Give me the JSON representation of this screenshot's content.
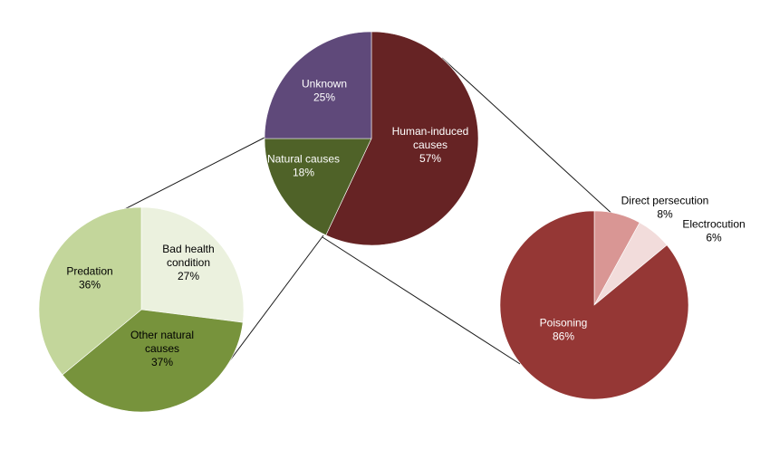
{
  "chart_data": [
    {
      "type": "pie",
      "title": "",
      "slices": [
        {
          "label": "Human-induced causes",
          "label_lines": [
            "Human-induced",
            "causes"
          ],
          "percent_text": "57%",
          "value": 57,
          "color": "#662324"
        },
        {
          "label": "Natural causes",
          "label_lines": [
            "Natural causes"
          ],
          "percent_text": "18%",
          "value": 18,
          "color": "#4F6228"
        },
        {
          "label": "Unknown",
          "label_lines": [
            "Unknown"
          ],
          "percent_text": "25%",
          "value": 25,
          "color": "#5F497A"
        }
      ]
    },
    {
      "type": "pie",
      "title": "",
      "breakdown_of": "Natural causes",
      "slices": [
        {
          "label": "Bad health condition",
          "label_lines": [
            "Bad health",
            "condition"
          ],
          "percent_text": "27%",
          "value": 27,
          "color": "#EBF1DE"
        },
        {
          "label": "Other natural causes",
          "label_lines": [
            "Other natural",
            "causes"
          ],
          "percent_text": "37%",
          "value": 37,
          "color": "#77933C"
        },
        {
          "label": "Predation",
          "label_lines": [
            "Predation"
          ],
          "percent_text": "36%",
          "value": 36,
          "color": "#C3D69B"
        }
      ]
    },
    {
      "type": "pie",
      "title": "",
      "breakdown_of": "Human-induced causes",
      "slices": [
        {
          "label": "Direct persecution",
          "label_lines": [
            "Direct persecution"
          ],
          "percent_text": "8%",
          "value": 8,
          "color": "#D99694"
        },
        {
          "label": "Electrocution",
          "label_lines": [
            "Electrocution"
          ],
          "percent_text": "6%",
          "value": 6,
          "color": "#F2DCDB"
        },
        {
          "label": "Poisoning",
          "label_lines": [
            "Poisoning"
          ],
          "percent_text": "86%",
          "value": 86,
          "color": "#953735"
        }
      ]
    }
  ]
}
